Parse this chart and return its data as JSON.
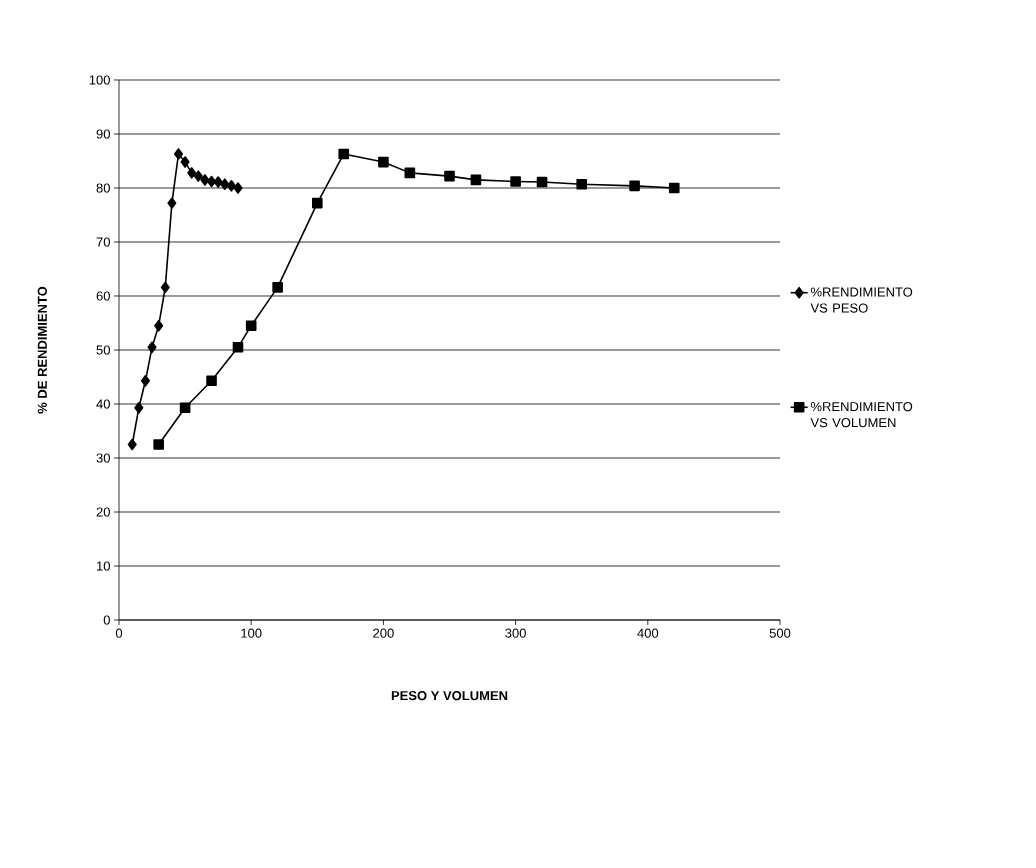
{
  "chart_data": {
    "type": "line",
    "xlabel": "PESO Y VOLUMEN",
    "ylabel": "% DE RENDIMIENTO",
    "xlim": [
      0,
      500
    ],
    "xticks": [
      0,
      100,
      200,
      300,
      400,
      500
    ],
    "ylim": [
      0,
      100
    ],
    "yticks": [
      0,
      10,
      20,
      30,
      40,
      50,
      60,
      70,
      80,
      90,
      100
    ],
    "grid": "y",
    "legend": "right",
    "line_style": "solid",
    "series": [
      {
        "name": "%RENDIMIENTO VS PESO",
        "color": "#000000",
        "marker": "diamond",
        "x": [
          10,
          15,
          20,
          25,
          30,
          35,
          40,
          45,
          50,
          55,
          60,
          65,
          70,
          75,
          80,
          85,
          90
        ],
        "values": [
          32.5,
          39.3,
          44.3,
          50.5,
          54.5,
          61.6,
          77.2,
          86.3,
          84.8,
          82.8,
          82.2,
          81.5,
          81.2,
          81.1,
          80.7,
          80.4,
          80.0
        ]
      },
      {
        "name": "%RENDIMIENTO VS VOLUMEN",
        "color": "#000000",
        "marker": "square",
        "x": [
          30,
          50,
          70,
          90,
          100,
          120,
          150,
          170,
          200,
          220,
          250,
          270,
          300,
          320,
          350,
          390,
          420
        ],
        "values": [
          32.5,
          39.3,
          44.3,
          50.5,
          54.5,
          61.6,
          77.2,
          86.3,
          84.8,
          82.8,
          82.2,
          81.5,
          81.2,
          81.1,
          80.7,
          80.4,
          80.0
        ]
      }
    ]
  }
}
